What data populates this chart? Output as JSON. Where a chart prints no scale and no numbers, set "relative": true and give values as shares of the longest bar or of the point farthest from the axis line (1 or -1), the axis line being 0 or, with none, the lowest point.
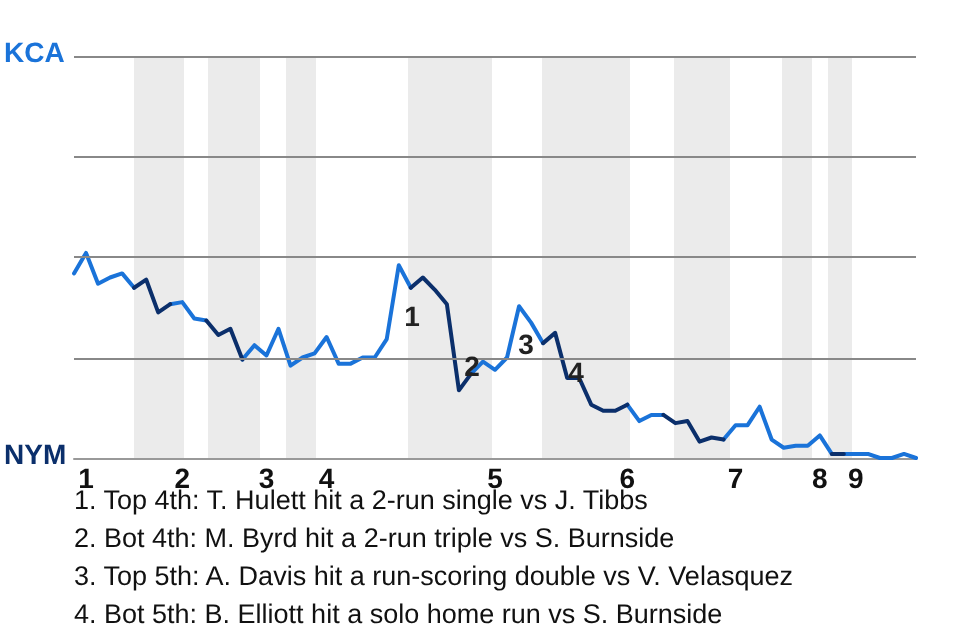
{
  "chart_data": {
    "type": "line",
    "relative": true,
    "categories": [
      null,
      "1",
      null,
      null,
      null,
      null,
      null,
      null,
      null,
      "2",
      null,
      null,
      null,
      null,
      null,
      null,
      "3",
      null,
      null,
      null,
      null,
      "4",
      null,
      null,
      null,
      null,
      null,
      null,
      null,
      null,
      null,
      null,
      null,
      null,
      null,
      "5",
      null,
      null,
      null,
      null,
      null,
      null,
      null,
      null,
      null,
      null,
      "6",
      null,
      null,
      null,
      null,
      null,
      null,
      null,
      null,
      "7",
      null,
      null,
      null,
      null,
      null,
      null,
      "8",
      null,
      null,
      "9",
      null,
      null,
      null,
      null,
      null
    ],
    "series": [
      {
        "color": "#1a73d9",
        "values": [
          0.9,
          1,
          0.85,
          0.88,
          0.9,
          0.83,
          null,
          null,
          0.75,
          0.76,
          0.68,
          0.67,
          null,
          null,
          0.48,
          0.55,
          0.5,
          0.63,
          0.45,
          0.49,
          0.51,
          0.59,
          0.46,
          0.46,
          0.49,
          0.49,
          0.58,
          0.94,
          0.83,
          null,
          null,
          null,
          null,
          0.41,
          0.47,
          0.43,
          0.49,
          0.74,
          0.66,
          0.56,
          null,
          null,
          null,
          null,
          null,
          null,
          0.26,
          0.18,
          0.21,
          0.21,
          null,
          null,
          null,
          null,
          0.09,
          0.16,
          0.16,
          0.25,
          0.09,
          0.05,
          0.06,
          0.06,
          0.11,
          0.02,
          0.02,
          0.02,
          0.02,
          0,
          0,
          0.02,
          0
        ]
      },
      {
        "color": "#0b2f6b",
        "values": [
          null,
          null,
          null,
          null,
          null,
          0.83,
          0.87,
          0.71,
          0.75,
          null,
          null,
          0.67,
          0.6,
          0.63,
          0.48,
          null,
          null,
          null,
          null,
          null,
          null,
          null,
          null,
          null,
          null,
          null,
          null,
          null,
          0.83,
          0.88,
          0.82,
          0.75,
          0.33,
          0.41,
          null,
          null,
          null,
          null,
          null,
          0.56,
          0.61,
          0.39,
          0.39,
          0.26,
          0.23,
          0.23,
          0.26,
          null,
          null,
          0.21,
          0.17,
          0.18,
          0.08,
          0.1,
          0.09,
          null,
          null,
          null,
          null,
          null,
          null,
          null,
          null,
          0.02,
          0.02,
          null,
          null,
          null,
          null,
          null,
          null
        ]
      }
    ],
    "ref_lines": [
      {
        "axis": "y",
        "value": 0.49,
        "color": "#888888"
      },
      {
        "axis": "y",
        "value": 0.98,
        "color": "#888888"
      },
      {
        "axis": "y",
        "value": 1.47,
        "color": "#888888"
      },
      {
        "axis": "y",
        "value": 1.96,
        "color": "#888888"
      }
    ],
    "annotations": [
      "KCA",
      "NYM",
      "1",
      "2",
      "3",
      "4",
      "1. Top 4th: T. Hulett hit a 2-run single vs J. Tibbs",
      "2. Bot 4th: M. Byrd hit a 2-run triple vs S. Burnside",
      "3. Top 5th: A. Davis hit a run-scoring double vs V. Velasquez",
      "4. Bot 5th: B. Elliott hit a solo home run vs S. Burnside"
    ],
    "marker": "none"
  }
}
